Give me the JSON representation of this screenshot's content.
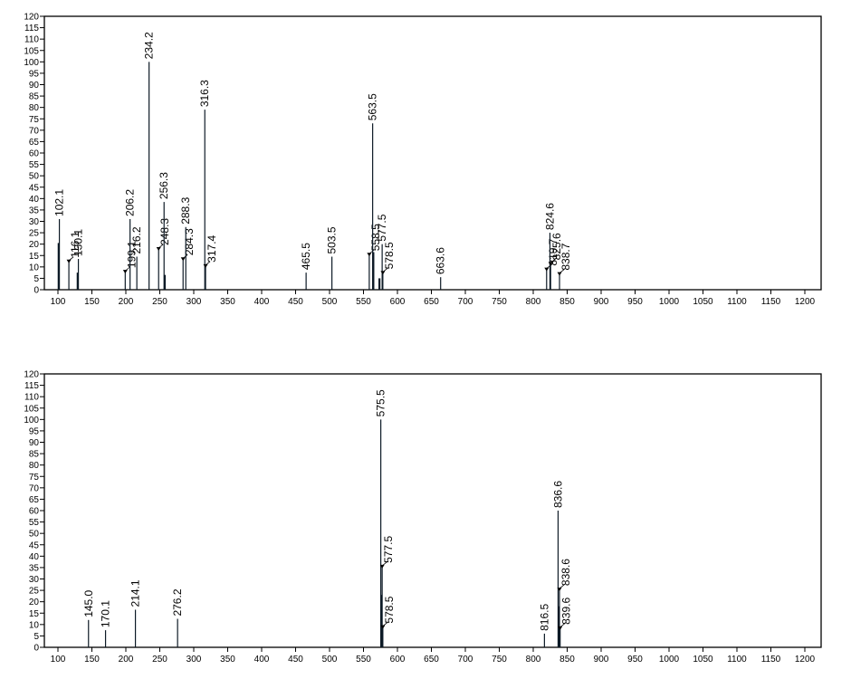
{
  "chart_data": [
    {
      "type": "bar",
      "subtype": "mass-spectrum-stick",
      "title": "",
      "xlabel": "",
      "ylabel": "",
      "xlim": [
        80,
        1210
      ],
      "ylim": [
        0,
        120
      ],
      "grid": false,
      "legend": null,
      "x_ticks": [
        100,
        150,
        200,
        250,
        300,
        350,
        400,
        450,
        500,
        550,
        600,
        650,
        700,
        750,
        800,
        850,
        900,
        950,
        1000,
        1050,
        1100,
        1150,
        1200
      ],
      "y_ticks": [
        0,
        5,
        10,
        15,
        20,
        25,
        30,
        35,
        40,
        45,
        50,
        55,
        60,
        65,
        70,
        75,
        80,
        85,
        90,
        95,
        100,
        105,
        110,
        115,
        120
      ],
      "peaks": [
        {
          "mz": 101.1,
          "intensity": 20.5,
          "label": ""
        },
        {
          "mz": 102.1,
          "intensity": 31,
          "label": "102.1"
        },
        {
          "mz": 116.1,
          "intensity": 12,
          "label": "116.1",
          "arrow": true
        },
        {
          "mz": 129.1,
          "intensity": 7.5,
          "label": ""
        },
        {
          "mz": 130.1,
          "intensity": 13.5,
          "label": "130.1"
        },
        {
          "mz": 199.1,
          "intensity": 7.5,
          "label": "199.1",
          "arrow": true
        },
        {
          "mz": 206.2,
          "intensity": 31,
          "label": "206.2"
        },
        {
          "mz": 216.2,
          "intensity": 14.5,
          "label": "216.2"
        },
        {
          "mz": 234.2,
          "intensity": 100,
          "label": "234.2"
        },
        {
          "mz": 248.3,
          "intensity": 17.5,
          "label": "248.3",
          "arrow": true
        },
        {
          "mz": 256.3,
          "intensity": 38.5,
          "label": "256.3"
        },
        {
          "mz": 257.3,
          "intensity": 6.5,
          "label": ""
        },
        {
          "mz": 284.3,
          "intensity": 13,
          "label": "284.3",
          "arrow": true
        },
        {
          "mz": 288.3,
          "intensity": 27.5,
          "label": "288.3"
        },
        {
          "mz": 316.3,
          "intensity": 79,
          "label": "316.3"
        },
        {
          "mz": 317.4,
          "intensity": 10,
          "label": "317.4",
          "arrow": true
        },
        {
          "mz": 465.5,
          "intensity": 7.5,
          "label": "465.5"
        },
        {
          "mz": 503.5,
          "intensity": 14.5,
          "label": "503.5"
        },
        {
          "mz": 558.5,
          "intensity": 15,
          "label": "558.5",
          "arrow": true
        },
        {
          "mz": 563.5,
          "intensity": 73,
          "label": "563.5"
        },
        {
          "mz": 564.5,
          "intensity": 16.5,
          "label": ""
        },
        {
          "mz": 573.5,
          "intensity": 5,
          "label": ""
        },
        {
          "mz": 577.5,
          "intensity": 20,
          "label": "577.5"
        },
        {
          "mz": 578.5,
          "intensity": 7,
          "label": "578.5",
          "arrow": true
        },
        {
          "mz": 663.6,
          "intensity": 5.5,
          "label": "663.6"
        },
        {
          "mz": 819.7,
          "intensity": 8.5,
          "label": "819.7",
          "arrow": true
        },
        {
          "mz": 824.6,
          "intensity": 25,
          "label": "824.6"
        },
        {
          "mz": 825.6,
          "intensity": 11,
          "label": "825.6",
          "arrow": true
        },
        {
          "mz": 838.7,
          "intensity": 6.5,
          "label": "838.7",
          "arrow": true
        }
      ]
    },
    {
      "type": "bar",
      "subtype": "mass-spectrum-stick",
      "title": "",
      "xlabel": "",
      "ylabel": "",
      "xlim": [
        80,
        1210
      ],
      "ylim": [
        0,
        120
      ],
      "grid": false,
      "legend": null,
      "x_ticks": [
        100,
        150,
        200,
        250,
        300,
        350,
        400,
        450,
        500,
        550,
        600,
        650,
        700,
        750,
        800,
        850,
        900,
        950,
        1000,
        1050,
        1100,
        1150,
        1200
      ],
      "y_ticks": [
        0,
        5,
        10,
        15,
        20,
        25,
        30,
        35,
        40,
        45,
        50,
        55,
        60,
        65,
        70,
        75,
        80,
        85,
        90,
        95,
        100,
        105,
        110,
        115,
        120
      ],
      "peaks": [
        {
          "mz": 145.0,
          "intensity": 12,
          "label": "145.0"
        },
        {
          "mz": 170.1,
          "intensity": 7.5,
          "label": "170.1"
        },
        {
          "mz": 214.1,
          "intensity": 16.5,
          "label": "214.1"
        },
        {
          "mz": 276.2,
          "intensity": 12.5,
          "label": "276.2"
        },
        {
          "mz": 575.5,
          "intensity": 100,
          "label": "575.5"
        },
        {
          "mz": 576.5,
          "intensity": 23,
          "label": ""
        },
        {
          "mz": 577.5,
          "intensity": 35,
          "label": "577.5",
          "arrow": true
        },
        {
          "mz": 578.5,
          "intensity": 8.5,
          "label": "578.5",
          "arrow": true
        },
        {
          "mz": 816.5,
          "intensity": 6,
          "label": "816.5"
        },
        {
          "mz": 836.6,
          "intensity": 60,
          "label": "836.6"
        },
        {
          "mz": 837.6,
          "intensity": 18,
          "label": ""
        },
        {
          "mz": 838.6,
          "intensity": 25,
          "label": "838.6",
          "arrow": true
        },
        {
          "mz": 839.6,
          "intensity": 8,
          "label": "839.6",
          "arrow": true
        }
      ]
    }
  ]
}
